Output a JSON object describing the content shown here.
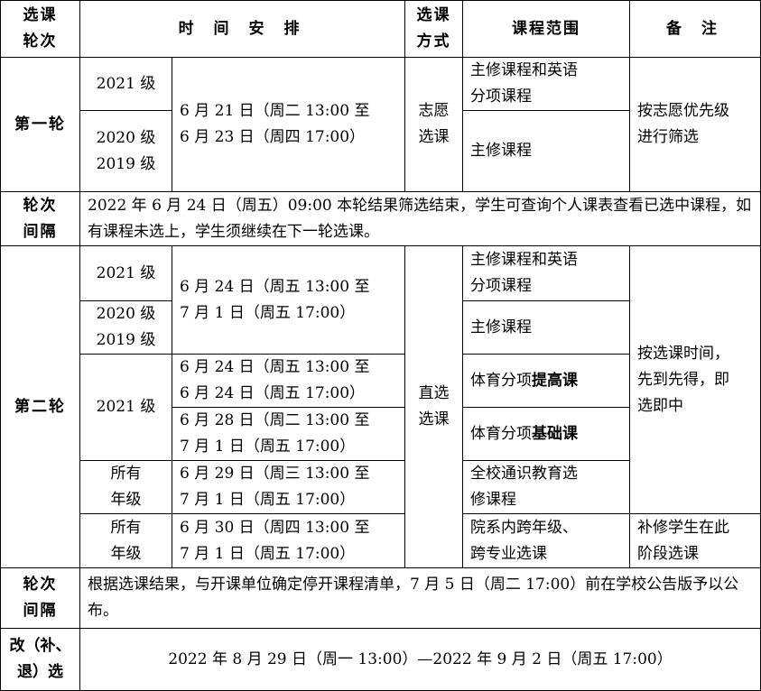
{
  "header": {
    "round": "选课\n轮次",
    "schedule": "时 间 安 排",
    "method": "选课\n方式",
    "scope": "课程范围",
    "notes": "备 注"
  },
  "round1": {
    "label": "第一轮",
    "grades": [
      "2021 级",
      "2020 级\n2019 级"
    ],
    "time": "6 月 21 日（周二 13:00 至\n6 月 23 日（周四 17:00）",
    "method": "志愿\n选课",
    "scopes": [
      "主修课程和英语\n分项课程",
      "主修课程"
    ],
    "note": "按志愿优先级\n进行筛选"
  },
  "interval1": {
    "label": "轮次\n间隔",
    "text": "2022 年 6 月 24 日（周五）09:00 本轮结果筛选结束，学生可查询个人课表查看已选中课程，如有课程未选上，学生须继续在下一轮选课。"
  },
  "round2": {
    "label": "第二轮",
    "grades": [
      "2021 级",
      "2020 级\n2019 级",
      "2021 级",
      "所有\n年级",
      "所有\n年级"
    ],
    "times": [
      "6 月 24 日（周五 13:00 至\n7 月 1 日（周五 17:00）",
      "6 月 24 日（周五 13:00 至\n6 月 24 日（周五 17:00）",
      "6 月 28 日（周二 13:00 至\n7 月 1 日（周五 17:00）",
      "6 月 29 日（周三 13:00 至\n7 月 1 日（周五 17:00）",
      "6 月 30 日（周四 13:00 至\n7 月 1 日（周五 17:00）"
    ],
    "method": "直选\n选课",
    "scopes": [
      "主修课程和英语\n分项课程",
      "主修课程",
      {
        "prefix": "体育分项",
        "bold": "提高课"
      },
      {
        "prefix": "体育分项",
        "bold": "基础课"
      },
      "全校通识教育选\n修课程",
      "院系内跨年级、\n跨专业选课"
    ],
    "notes": [
      "按选课时间，\n先到先得，即\n选即中",
      "补修学生在此\n阶段选课"
    ]
  },
  "interval2": {
    "label": "轮次\n间隔",
    "text": "根据选课结果，与开课单位确定停开课程清单，7 月 5 日（周二 17:00）前在学校公告版予以公布。"
  },
  "adjust": {
    "label": "改（补、\n退）选",
    "text": "2022 年 8 月 29 日（周一 13:00）—2022 年 9 月 2 日（周五 17:00）"
  }
}
